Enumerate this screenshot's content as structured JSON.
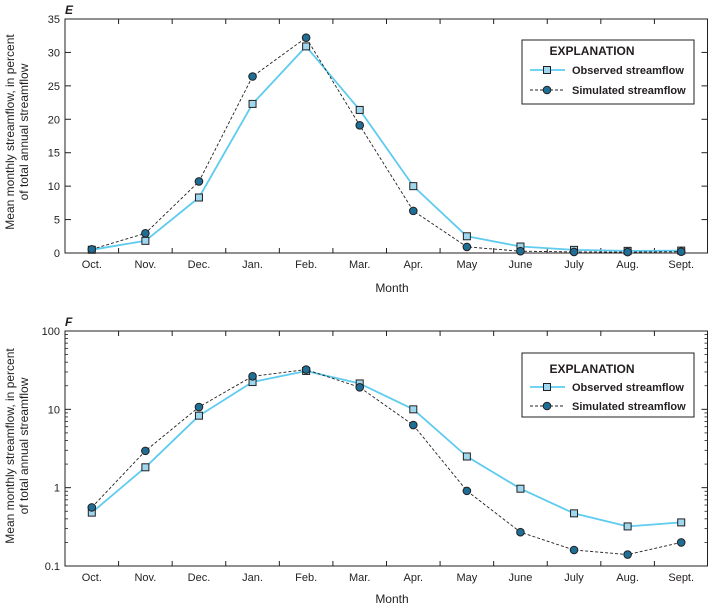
{
  "colors": {
    "observed_line": "#5ecbef",
    "observed_marker_fill": "#9fd8ee",
    "simulated_marker_fill": "#1e6e96",
    "stroke": "#231f20"
  },
  "chart_data": [
    {
      "type": "line",
      "panel_label": "E",
      "scale": "linear",
      "categories": [
        "Oct.",
        "Nov.",
        "Dec.",
        "Jan.",
        "Feb.",
        "Mar.",
        "Apr.",
        "May",
        "June",
        "July",
        "Aug.",
        "Sept."
      ],
      "xlabel": "Month",
      "ylabel_lines": [
        "Mean monthly streamflow, in percent",
        "of total annual streamflow"
      ],
      "ylim": [
        0,
        35
      ],
      "yticks": [
        0,
        5,
        10,
        15,
        20,
        25,
        30,
        35
      ],
      "ytick_labels": [
        "0",
        "5",
        "10",
        "15",
        "20",
        "25",
        "30",
        "35"
      ],
      "legend": {
        "title": "EXPLANATION",
        "placement": "top-right",
        "observed_label": "Observed streamflow",
        "simulated_label": "Simulated streamflow"
      },
      "series": [
        {
          "name": "Observed streamflow",
          "style": "solid",
          "marker": "square",
          "values": [
            0.48,
            1.82,
            8.3,
            22.3,
            30.9,
            21.4,
            10.0,
            2.5,
            0.97,
            0.47,
            0.32,
            0.36
          ]
        },
        {
          "name": "Simulated streamflow",
          "style": "dashed",
          "marker": "circle",
          "values": [
            0.56,
            2.95,
            10.7,
            26.4,
            32.2,
            19.1,
            6.3,
            0.91,
            0.27,
            0.16,
            0.14,
            0.2
          ]
        }
      ]
    },
    {
      "type": "line",
      "panel_label": "F",
      "scale": "log",
      "categories": [
        "Oct.",
        "Nov.",
        "Dec.",
        "Jan.",
        "Feb.",
        "Mar.",
        "Apr.",
        "May",
        "June",
        "July",
        "Aug.",
        "Sept."
      ],
      "xlabel": "Month",
      "ylabel_lines": [
        "Mean monthly streamflow, in percent",
        "of total annual streamflow"
      ],
      "ylim": [
        0.1,
        100
      ],
      "yticks": [
        0.1,
        1,
        10,
        100
      ],
      "ytick_labels": [
        "0.1",
        "1",
        "10",
        "100"
      ],
      "legend": {
        "title": "EXPLANATION",
        "placement": "top-right",
        "observed_label": "Observed streamflow",
        "simulated_label": "Simulated streamflow"
      },
      "series": [
        {
          "name": "Observed streamflow",
          "style": "solid",
          "marker": "square",
          "values": [
            0.48,
            1.82,
            8.3,
            22.3,
            30.9,
            21.4,
            10.0,
            2.5,
            0.97,
            0.47,
            0.32,
            0.36
          ]
        },
        {
          "name": "Simulated streamflow",
          "style": "dashed",
          "marker": "circle",
          "values": [
            0.56,
            2.95,
            10.7,
            26.4,
            32.2,
            19.1,
            6.3,
            0.91,
            0.27,
            0.16,
            0.14,
            0.2
          ]
        }
      ]
    }
  ]
}
